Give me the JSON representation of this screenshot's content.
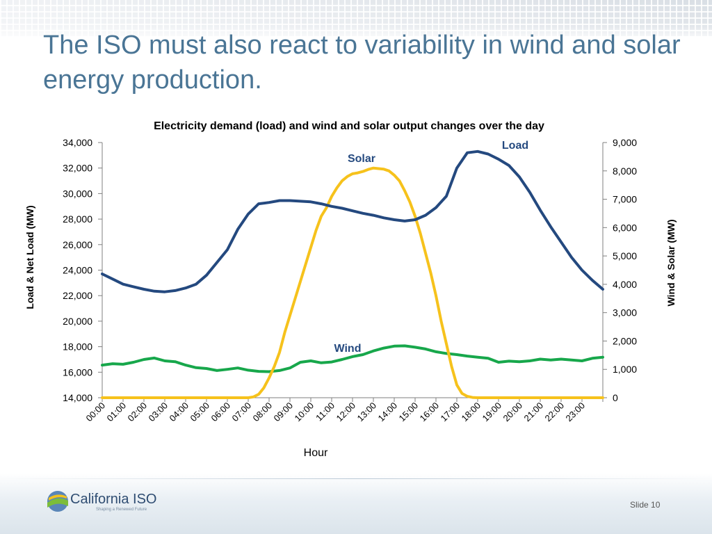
{
  "slide": {
    "title": "The ISO must also react to variability in wind and solar energy production.",
    "slide_number": "Slide 10",
    "logo_text": "California ISO",
    "logo_tagline": "Shaping a Renewed Future"
  },
  "colors": {
    "title": "#4a7595",
    "load": "#24497f",
    "solar": "#f6c21c",
    "wind": "#17a74b"
  },
  "chart_data": {
    "type": "line",
    "title": "Electricity demand (load) and wind and solar output changes over the day",
    "xlabel": "Hour",
    "ylabel_left": "Load & Net Load (MW)",
    "ylabel_right": "Wind & Solar (MW)",
    "x_tick_labels": [
      "00:00",
      "01:00",
      "02:00",
      "03:00",
      "04:00",
      "05:00",
      "06:00",
      "07:00",
      "08:00",
      "09:00",
      "10:00",
      "11:00",
      "12:00",
      "13:00",
      "14:00",
      "15:00",
      "16:00",
      "17:00",
      "18:00",
      "19:00",
      "20:00",
      "21:00",
      "22:00",
      "23:00"
    ],
    "x_range_hours": [
      0,
      24
    ],
    "ylim_left": [
      14000,
      34000
    ],
    "left_ticks": [
      14000,
      16000,
      18000,
      20000,
      22000,
      24000,
      26000,
      28000,
      30000,
      32000,
      34000
    ],
    "left_tick_labels": [
      "14,000",
      "16,000",
      "18,000",
      "20,000",
      "22,000",
      "24,000",
      "26,000",
      "28,000",
      "30,000",
      "32,000",
      "34,000"
    ],
    "ylim_right": [
      0,
      9000
    ],
    "right_ticks": [
      0,
      1000,
      2000,
      3000,
      4000,
      5000,
      6000,
      7000,
      8000,
      9000
    ],
    "right_tick_labels": [
      "0",
      "1,000",
      "2,000",
      "3,000",
      "4,000",
      "5,000",
      "6,000",
      "7,000",
      "8,000",
      "9,000"
    ],
    "grid": false,
    "series": [
      {
        "name": "Load",
        "axis": "left",
        "x": [
          0,
          0.5,
          1,
          1.5,
          2,
          2.5,
          3,
          3.5,
          4,
          4.5,
          5,
          5.5,
          6,
          6.5,
          7,
          7.5,
          8,
          8.5,
          9,
          9.5,
          10,
          10.5,
          11,
          11.5,
          12,
          12.5,
          13,
          13.5,
          14,
          14.5,
          15,
          15.5,
          16,
          16.5,
          17,
          17.5,
          18,
          18.5,
          19,
          19.5,
          20,
          20.5,
          21,
          21.5,
          22,
          22.5,
          23,
          23.5,
          24
        ],
        "values": [
          23700,
          23300,
          22900,
          22700,
          22500,
          22350,
          22300,
          22400,
          22600,
          22900,
          23600,
          24600,
          25600,
          27200,
          28400,
          29200,
          29300,
          29450,
          29450,
          29400,
          29350,
          29200,
          29000,
          28850,
          28650,
          28450,
          28300,
          28100,
          27950,
          27850,
          27950,
          28300,
          28900,
          29800,
          32000,
          33200,
          33300,
          33100,
          32700,
          32200,
          31300,
          30100,
          28700,
          27400,
          26200,
          25000,
          24000,
          23200,
          22500
        ]
      },
      {
        "name": "Solar",
        "axis": "right",
        "x": [
          0,
          7,
          7.25,
          7.5,
          7.75,
          8,
          8.25,
          8.5,
          8.75,
          9,
          9.25,
          9.5,
          9.75,
          10,
          10.25,
          10.5,
          10.75,
          11,
          11.25,
          11.5,
          11.75,
          12,
          12.25,
          12.5,
          12.75,
          13,
          13.25,
          13.5,
          13.75,
          14,
          14.25,
          14.5,
          14.75,
          15,
          15.25,
          15.5,
          15.75,
          16,
          16.25,
          16.5,
          16.75,
          17,
          17.25,
          17.5,
          17.75,
          18,
          24
        ],
        "values": [
          0,
          0,
          30,
          120,
          350,
          700,
          1100,
          1600,
          2300,
          2900,
          3500,
          4100,
          4700,
          5300,
          5900,
          6400,
          6700,
          7100,
          7400,
          7650,
          7800,
          7900,
          7930,
          7980,
          8050,
          8100,
          8080,
          8060,
          8000,
          7850,
          7650,
          7300,
          6900,
          6400,
          5800,
          5100,
          4400,
          3600,
          2700,
          1900,
          1100,
          450,
          150,
          50,
          10,
          0,
          0
        ]
      },
      {
        "name": "Wind",
        "axis": "right",
        "x": [
          0,
          0.5,
          1,
          1.5,
          2,
          2.5,
          3,
          3.5,
          4,
          4.5,
          5,
          5.5,
          6,
          6.5,
          7,
          7.5,
          8,
          8.5,
          9,
          9.5,
          10,
          10.5,
          11,
          11.5,
          12,
          12.5,
          13,
          13.5,
          14,
          14.5,
          15,
          15.5,
          16,
          16.5,
          17,
          17.5,
          18,
          18.5,
          19,
          19.5,
          20,
          20.5,
          21,
          21.5,
          22,
          22.5,
          23,
          23.5,
          24
        ],
        "values": [
          1150,
          1200,
          1180,
          1250,
          1350,
          1400,
          1300,
          1270,
          1150,
          1060,
          1030,
          960,
          1000,
          1050,
          970,
          930,
          920,
          960,
          1050,
          1250,
          1300,
          1230,
          1260,
          1350,
          1450,
          1520,
          1650,
          1750,
          1820,
          1830,
          1780,
          1720,
          1620,
          1560,
          1520,
          1470,
          1430,
          1390,
          1250,
          1290,
          1270,
          1300,
          1360,
          1330,
          1360,
          1330,
          1300,
          1390,
          1430
        ]
      }
    ]
  }
}
